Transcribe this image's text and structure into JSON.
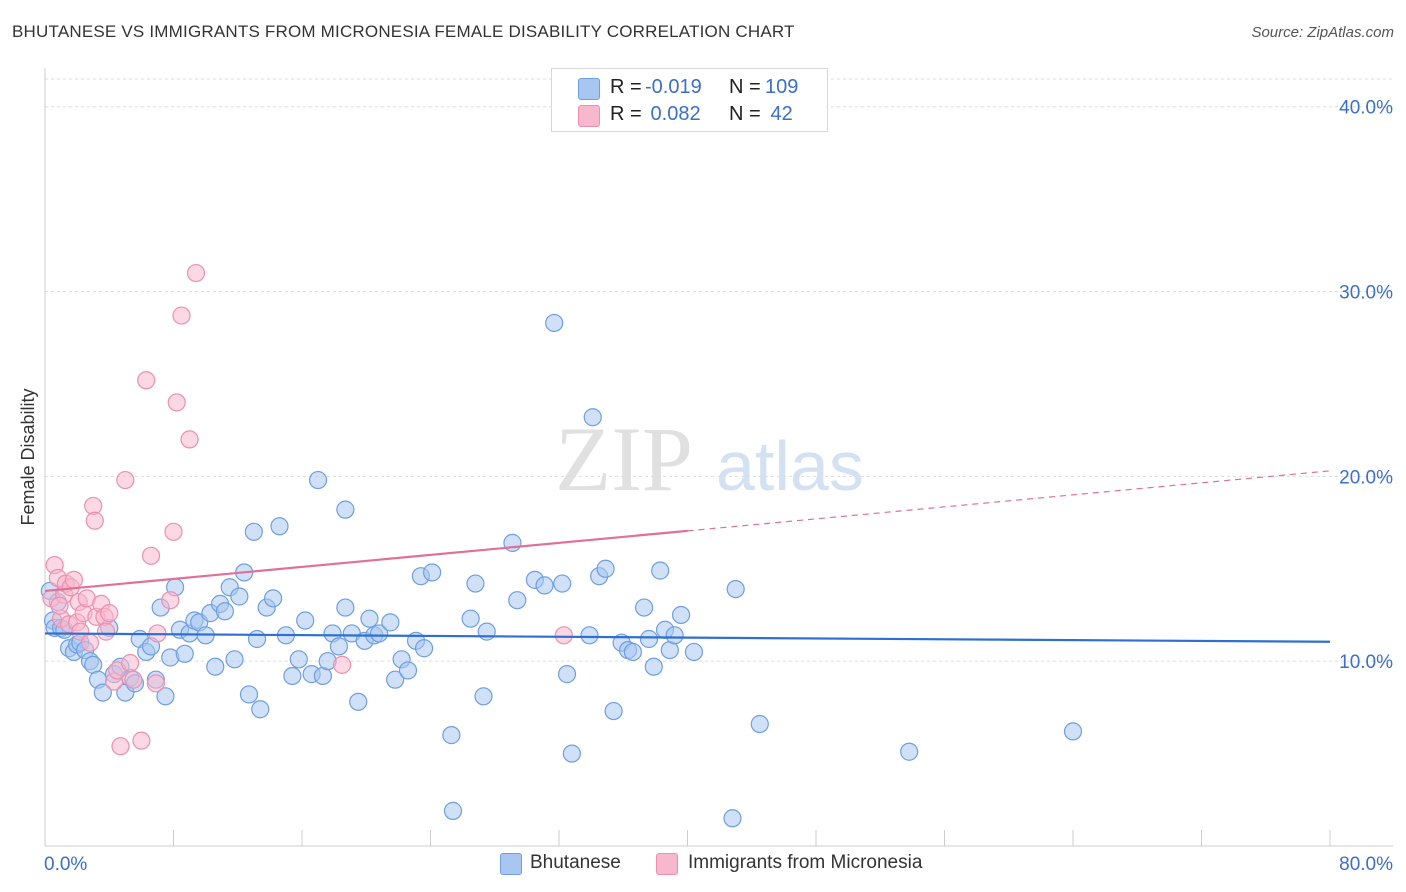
{
  "header": {
    "title": "BHUTANESE VS IMMIGRANTS FROM MICRONESIA FEMALE DISABILITY CORRELATION CHART",
    "source": "Source: ZipAtlas.com"
  },
  "watermark": {
    "zip": "ZIP",
    "atlas": "atlas"
  },
  "legend": {
    "rows": [
      {
        "r_label": "R =",
        "r_value": "-0.019",
        "n_label": "N =",
        "n_value": "109"
      },
      {
        "r_label": "R =",
        "r_value": " 0.082",
        "n_label": "N =",
        "n_value": " 42"
      }
    ]
  },
  "bottom_legend": {
    "items": [
      {
        "label": "Bhutanese"
      },
      {
        "label": "Immigrants from Micronesia"
      }
    ]
  },
  "colors": {
    "blue_fill": "#a8c6f0",
    "blue_stroke": "#6f9fe0",
    "blue_line": "#2e6fd1",
    "pink_fill": "#f7b8ce",
    "pink_stroke": "#ee8fb0",
    "pink_line": "#e07098",
    "axis_text": "#3a6fcc",
    "grid": "#dddddd"
  },
  "chart_data": {
    "type": "scatter",
    "title": "BHUTANESE VS IMMIGRANTS FROM MICRONESIA FEMALE DISABILITY CORRELATION CHART",
    "xlabel": "",
    "ylabel": "Female Disability",
    "xlim": [
      0,
      80
    ],
    "ylim": [
      0,
      41.5
    ],
    "x_tick_labels": [
      "0.0%",
      "80.0%"
    ],
    "y_ticks": [
      10,
      20,
      30,
      40
    ],
    "y_tick_labels": [
      "10.0%",
      "20.0%",
      "30.0%",
      "40.0%"
    ],
    "grid": true,
    "series": [
      {
        "name": "Bhutanese",
        "r": -0.019,
        "n": 109,
        "trend": {
          "x0": 0,
          "y0": 11.5,
          "x1": 80,
          "y1": 11.05,
          "dashed_from": null
        },
        "points": [
          [
            0.3,
            13.8
          ],
          [
            0.5,
            12.2
          ],
          [
            0.6,
            11.8
          ],
          [
            0.8,
            13.2
          ],
          [
            1.0,
            11.8
          ],
          [
            1.2,
            11.7
          ],
          [
            1.5,
            10.7
          ],
          [
            1.8,
            10.5
          ],
          [
            2.0,
            10.9
          ],
          [
            2.2,
            11.0
          ],
          [
            2.5,
            10.6
          ],
          [
            2.8,
            10.0
          ],
          [
            3.0,
            9.8
          ],
          [
            3.3,
            9.0
          ],
          [
            3.6,
            8.3
          ],
          [
            4.0,
            11.8
          ],
          [
            4.3,
            9.3
          ],
          [
            4.7,
            9.7
          ],
          [
            5.0,
            8.3
          ],
          [
            5.3,
            9.1
          ],
          [
            5.6,
            8.8
          ],
          [
            5.9,
            11.2
          ],
          [
            6.3,
            10.5
          ],
          [
            6.6,
            10.8
          ],
          [
            6.9,
            9.0
          ],
          [
            7.2,
            12.9
          ],
          [
            7.5,
            8.1
          ],
          [
            7.8,
            10.2
          ],
          [
            8.1,
            14.0
          ],
          [
            8.4,
            11.7
          ],
          [
            8.7,
            10.4
          ],
          [
            9.0,
            11.5
          ],
          [
            9.3,
            12.2
          ],
          [
            9.6,
            12.1
          ],
          [
            10.0,
            11.4
          ],
          [
            10.3,
            12.6
          ],
          [
            10.6,
            9.7
          ],
          [
            10.9,
            13.1
          ],
          [
            11.2,
            12.7
          ],
          [
            11.5,
            14.0
          ],
          [
            11.8,
            10.1
          ],
          [
            12.1,
            13.5
          ],
          [
            12.4,
            14.8
          ],
          [
            12.7,
            8.2
          ],
          [
            13.0,
            17.0
          ],
          [
            13.4,
            7.4
          ],
          [
            13.2,
            11.2
          ],
          [
            13.8,
            12.9
          ],
          [
            14.2,
            13.4
          ],
          [
            14.6,
            17.3
          ],
          [
            15.0,
            11.4
          ],
          [
            15.4,
            9.2
          ],
          [
            15.8,
            10.1
          ],
          [
            16.2,
            12.2
          ],
          [
            16.6,
            9.3
          ],
          [
            17.0,
            19.8
          ],
          [
            17.3,
            9.2
          ],
          [
            17.6,
            10.0
          ],
          [
            17.9,
            11.5
          ],
          [
            18.3,
            10.8
          ],
          [
            18.7,
            18.2
          ],
          [
            18.7,
            12.9
          ],
          [
            19.1,
            11.5
          ],
          [
            19.5,
            7.8
          ],
          [
            19.9,
            11.1
          ],
          [
            20.2,
            12.3
          ],
          [
            20.5,
            11.4
          ],
          [
            20.8,
            11.5
          ],
          [
            21.5,
            12.1
          ],
          [
            21.8,
            9.0
          ],
          [
            22.2,
            10.1
          ],
          [
            22.6,
            9.5
          ],
          [
            23.1,
            11.1
          ],
          [
            23.4,
            14.6
          ],
          [
            23.6,
            10.7
          ],
          [
            24.1,
            14.8
          ],
          [
            25.3,
            6.0
          ],
          [
            25.4,
            1.9
          ],
          [
            26.5,
            12.3
          ],
          [
            26.8,
            14.2
          ],
          [
            27.3,
            8.1
          ],
          [
            27.5,
            11.6
          ],
          [
            29.1,
            16.4
          ],
          [
            29.4,
            13.3
          ],
          [
            30.5,
            14.4
          ],
          [
            31.1,
            14.1
          ],
          [
            31.7,
            28.3
          ],
          [
            32.2,
            14.2
          ],
          [
            32.5,
            9.3
          ],
          [
            32.8,
            5.0
          ],
          [
            33.9,
            11.4
          ],
          [
            34.1,
            23.2
          ],
          [
            34.5,
            14.6
          ],
          [
            34.9,
            15.0
          ],
          [
            35.4,
            7.3
          ],
          [
            35.9,
            11.0
          ],
          [
            36.3,
            10.6
          ],
          [
            36.6,
            10.5
          ],
          [
            37.3,
            12.9
          ],
          [
            37.6,
            11.2
          ],
          [
            37.9,
            9.7
          ],
          [
            38.3,
            14.9
          ],
          [
            38.6,
            11.7
          ],
          [
            38.9,
            10.6
          ],
          [
            39.2,
            11.4
          ],
          [
            39.6,
            12.5
          ],
          [
            40.4,
            10.5
          ],
          [
            42.8,
            1.5
          ],
          [
            43.0,
            13.9
          ],
          [
            44.5,
            6.6
          ],
          [
            53.8,
            5.1
          ],
          [
            64.0,
            6.2
          ]
        ]
      },
      {
        "name": "Immigrants from Micronesia",
        "r": 0.082,
        "n": 42,
        "trend": {
          "x0": 0,
          "y0": 13.8,
          "x1": 80,
          "y1": 20.3,
          "dashed_from": 40
        },
        "points": [
          [
            0.4,
            13.4
          ],
          [
            0.6,
            15.2
          ],
          [
            0.8,
            14.5
          ],
          [
            1.0,
            12.3
          ],
          [
            1.2,
            13.6
          ],
          [
            1.3,
            14.2
          ],
          [
            1.5,
            12.0
          ],
          [
            1.6,
            14.0
          ],
          [
            1.8,
            14.4
          ],
          [
            2.0,
            12.1
          ],
          [
            2.1,
            13.2
          ],
          [
            2.2,
            11.6
          ],
          [
            2.4,
            12.6
          ],
          [
            2.6,
            13.4
          ],
          [
            2.8,
            11.0
          ],
          [
            3.0,
            18.4
          ],
          [
            3.1,
            17.6
          ],
          [
            3.2,
            12.4
          ],
          [
            3.5,
            13.1
          ],
          [
            3.7,
            12.4
          ],
          [
            3.8,
            11.6
          ],
          [
            4.0,
            12.6
          ],
          [
            4.3,
            8.9
          ],
          [
            4.5,
            9.5
          ],
          [
            4.7,
            5.4
          ],
          [
            5.0,
            19.8
          ],
          [
            5.3,
            9.9
          ],
          [
            5.5,
            9.0
          ],
          [
            6.0,
            5.7
          ],
          [
            6.3,
            25.2
          ],
          [
            6.6,
            15.7
          ],
          [
            6.9,
            8.8
          ],
          [
            7.0,
            11.5
          ],
          [
            7.8,
            13.3
          ],
          [
            8.0,
            17.0
          ],
          [
            8.2,
            24.0
          ],
          [
            8.5,
            28.7
          ],
          [
            9.0,
            22.0
          ],
          [
            9.4,
            31.0
          ],
          [
            18.5,
            9.8
          ],
          [
            32.3,
            11.4
          ],
          [
            0.9,
            13.0
          ]
        ]
      }
    ]
  }
}
